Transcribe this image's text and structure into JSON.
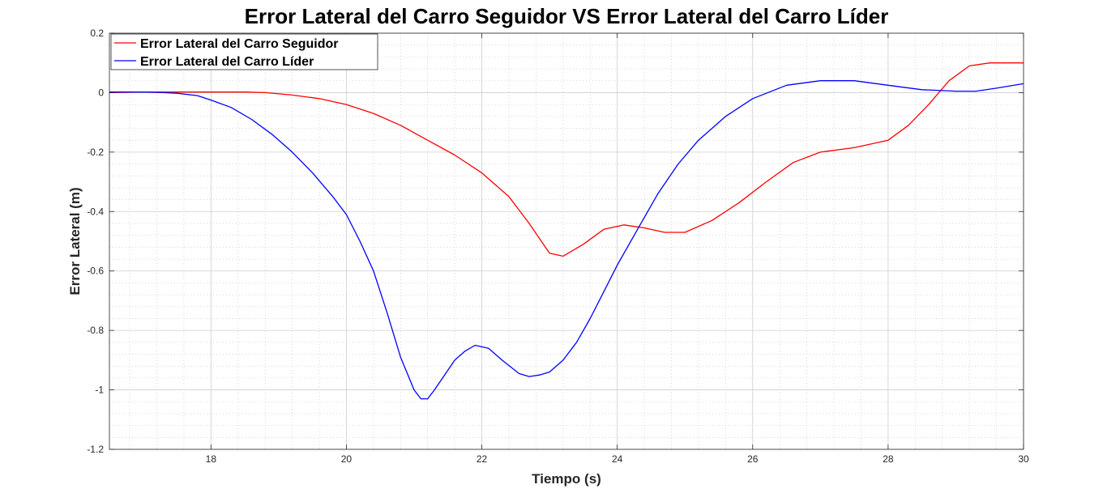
{
  "chart_data": {
    "type": "line",
    "title": "Error Lateral del Carro Seguidor VS Error Lateral del Carro Líder",
    "xlabel": "Tiempo (s)",
    "ylabel": "Error Lateral (m)",
    "xlim": [
      16.5,
      30
    ],
    "ylim": [
      -1.2,
      0.2
    ],
    "xticks": [
      18,
      20,
      22,
      24,
      26,
      28,
      30
    ],
    "xtick_labels": [
      "18",
      "20",
      "22",
      "24",
      "26",
      "28",
      "30"
    ],
    "yticks": [
      -1.2,
      -1,
      -0.8,
      -0.6,
      -0.4,
      -0.2,
      0,
      0.2
    ],
    "ytick_labels": [
      "-1.2",
      "-1",
      "-0.8",
      "-0.6",
      "-0.4",
      "-0.2",
      "0",
      "0.2"
    ],
    "grid": true,
    "minor_grid": true,
    "legend_position": "top-left",
    "series": [
      {
        "name": "Error Lateral del Carro Seguidor",
        "color": "#ff0000",
        "x": [
          16.5,
          17,
          17.5,
          18,
          18.5,
          18.8,
          19.2,
          19.6,
          20,
          20.4,
          20.8,
          21.2,
          21.6,
          22,
          22.4,
          22.7,
          23,
          23.2,
          23.5,
          23.8,
          24.1,
          24.4,
          24.7,
          25,
          25.4,
          25.8,
          26.2,
          26.6,
          27,
          27.5,
          28,
          28.3,
          28.6,
          28.9,
          29.2,
          29.5,
          30
        ],
        "y": [
          0.0,
          0.002,
          0.002,
          0.002,
          0.002,
          0.0,
          -0.008,
          -0.02,
          -0.04,
          -0.07,
          -0.11,
          -0.16,
          -0.21,
          -0.27,
          -0.35,
          -0.44,
          -0.54,
          -0.55,
          -0.51,
          -0.46,
          -0.445,
          -0.455,
          -0.47,
          -0.47,
          -0.43,
          -0.37,
          -0.3,
          -0.235,
          -0.2,
          -0.185,
          -0.16,
          -0.11,
          -0.04,
          0.04,
          0.09,
          0.1,
          0.1
        ]
      },
      {
        "name": "Error Lateral del Carro Líder",
        "color": "#0000ff",
        "x": [
          16.5,
          17,
          17.3,
          17.5,
          17.8,
          18,
          18.3,
          18.6,
          18.9,
          19.2,
          19.5,
          19.8,
          20,
          20.2,
          20.4,
          20.6,
          20.8,
          21,
          21.1,
          21.2,
          21.3,
          21.45,
          21.6,
          21.75,
          21.9,
          22.1,
          22.3,
          22.55,
          22.7,
          22.85,
          23,
          23.2,
          23.4,
          23.6,
          23.8,
          24,
          24.3,
          24.6,
          24.9,
          25.2,
          25.6,
          26,
          26.5,
          27,
          27.5,
          28,
          28.5,
          29,
          29.3,
          29.6,
          30
        ],
        "y": [
          0.002,
          0.002,
          0.0,
          -0.002,
          -0.01,
          -0.025,
          -0.05,
          -0.09,
          -0.14,
          -0.2,
          -0.27,
          -0.35,
          -0.41,
          -0.5,
          -0.6,
          -0.74,
          -0.89,
          -1.0,
          -1.03,
          -1.03,
          -1.0,
          -0.95,
          -0.9,
          -0.87,
          -0.85,
          -0.86,
          -0.9,
          -0.945,
          -0.955,
          -0.95,
          -0.94,
          -0.9,
          -0.84,
          -0.76,
          -0.67,
          -0.58,
          -0.46,
          -0.34,
          -0.24,
          -0.16,
          -0.08,
          -0.02,
          0.025,
          0.04,
          0.04,
          0.025,
          0.01,
          0.005,
          0.005,
          0.015,
          0.03
        ]
      }
    ]
  }
}
